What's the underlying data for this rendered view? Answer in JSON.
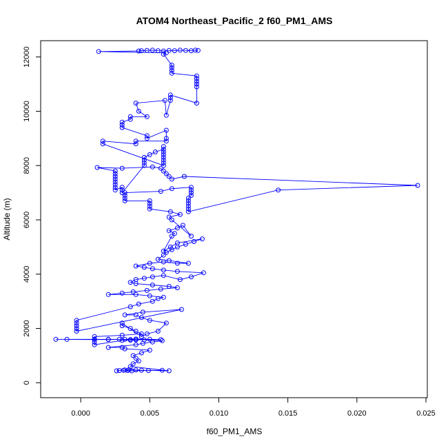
{
  "chart_data": {
    "type": "scatter",
    "title": "ATOM4 Northeast_Pacific_2 f60_PM1_AMS",
    "xlabel": "f60_PM1_AMS",
    "ylabel": "Altitude (m)",
    "xlim": [
      -0.0029,
      0.0251
    ],
    "ylim": [
      -550,
      12600
    ],
    "xticks": [
      0.0,
      0.005,
      0.01,
      0.015,
      0.02,
      0.025
    ],
    "xtick_labels": [
      "0.000",
      "0.005",
      "0.010",
      "0.015",
      "0.020",
      "0.025"
    ],
    "yticks": [
      0,
      2000,
      4000,
      6000,
      8000,
      10000,
      12000
    ],
    "ytick_labels": [
      "0",
      "2000",
      "4000",
      "6000",
      "8000",
      "10000",
      "12000"
    ],
    "grid": false,
    "series_style": {
      "color": "#0000ff",
      "marker": "open-circle",
      "line": true
    },
    "points": [
      [
        0.0059,
        460
      ],
      [
        0.0049,
        450
      ],
      [
        0.0037,
        440
      ],
      [
        0.0034,
        450
      ],
      [
        0.0031,
        460
      ],
      [
        0.0028,
        450
      ],
      [
        0.0026,
        440
      ],
      [
        0.0032,
        470
      ],
      [
        0.0035,
        480
      ],
      [
        0.004,
        470
      ],
      [
        0.0044,
        460
      ],
      [
        0.0064,
        440
      ],
      [
        0.0036,
        600
      ],
      [
        0.0038,
        700
      ],
      [
        0.0042,
        800
      ],
      [
        0.004,
        900
      ],
      [
        0.0038,
        1000
      ],
      [
        0.0044,
        1100
      ],
      [
        0.005,
        1200
      ],
      [
        0.0032,
        1250
      ],
      [
        0.003,
        1300
      ],
      [
        0.002,
        1300
      ],
      [
        0.004,
        1400
      ],
      [
        0.0045,
        1450
      ],
      [
        0.0052,
        1500
      ],
      [
        0.0059,
        1550
      ],
      [
        0.0046,
        1580
      ],
      [
        0.0036,
        1590
      ],
      [
        0.0028,
        1600
      ],
      [
        0.002,
        1600
      ],
      [
        0.001,
        1600
      ],
      [
        -0.001,
        1600
      ],
      [
        -0.0018,
        1600
      ],
      [
        0.001,
        1590
      ],
      [
        0.002,
        1590
      ],
      [
        0.0032,
        1600
      ],
      [
        0.004,
        1610
      ],
      [
        0.005,
        1600
      ],
      [
        0.0058,
        1590
      ],
      [
        0.004,
        1580
      ],
      [
        0.0036,
        1570
      ],
      [
        0.003,
        1560
      ],
      [
        0.001,
        1400
      ],
      [
        0.001,
        1500
      ],
      [
        0.001,
        1600
      ],
      [
        0.001,
        1700
      ],
      [
        0.003,
        1750
      ],
      [
        0.0044,
        1800
      ],
      [
        0.004,
        1900
      ],
      [
        0.0036,
        2000
      ],
      [
        0.003,
        2100
      ],
      [
        0.003,
        2200
      ],
      [
        0.0044,
        1700
      ],
      [
        0.0048,
        1800
      ],
      [
        0.0056,
        1900
      ],
      [
        0.0062,
        2200
      ],
      [
        0.005,
        2300
      ],
      [
        0.0044,
        2400
      ],
      [
        0.004,
        2500
      ],
      [
        0.0032,
        2500
      ],
      [
        0.0045,
        2600
      ],
      [
        0.0073,
        2700
      ],
      [
        -0.0003,
        1900
      ],
      [
        -0.0003,
        2000
      ],
      [
        -0.0003,
        2100
      ],
      [
        -0.0003,
        2200
      ],
      [
        -0.0003,
        2300
      ],
      [
        0.0036,
        2800
      ],
      [
        0.0042,
        2900
      ],
      [
        0.0052,
        3000
      ],
      [
        0.0056,
        3100
      ],
      [
        0.006,
        3150
      ],
      [
        0.005,
        3200
      ],
      [
        0.004,
        3250
      ],
      [
        0.002,
        3250
      ],
      [
        0.003,
        3300
      ],
      [
        0.0038,
        3350
      ],
      [
        0.0048,
        3400
      ],
      [
        0.0058,
        3450
      ],
      [
        0.007,
        3500
      ],
      [
        0.0064,
        3550
      ],
      [
        0.0052,
        3600
      ],
      [
        0.004,
        3650
      ],
      [
        0.0036,
        3700
      ],
      [
        0.004,
        3800
      ],
      [
        0.0046,
        3850
      ],
      [
        0.0052,
        3900
      ],
      [
        0.006,
        3950
      ],
      [
        0.0072,
        3800
      ],
      [
        0.008,
        3900
      ],
      [
        0.0089,
        4050
      ],
      [
        0.007,
        4100
      ],
      [
        0.006,
        4150
      ],
      [
        0.0052,
        4200
      ],
      [
        0.0046,
        4250
      ],
      [
        0.004,
        4300
      ],
      [
        0.005,
        4400
      ],
      [
        0.006,
        4450
      ],
      [
        0.007,
        4400
      ],
      [
        0.0078,
        4400
      ],
      [
        0.0064,
        4500
      ],
      [
        0.0056,
        4550
      ],
      [
        0.006,
        4700
      ],
      [
        0.0062,
        4800
      ],
      [
        0.0066,
        4900
      ],
      [
        0.007,
        5000
      ],
      [
        0.0076,
        5100
      ],
      [
        0.0082,
        5200
      ],
      [
        0.0088,
        5300
      ],
      [
        0.007,
        5150
      ],
      [
        0.0065,
        5000
      ],
      [
        0.006,
        4850
      ],
      [
        0.0066,
        5400
      ],
      [
        0.0068,
        5500
      ],
      [
        0.0064,
        5600
      ],
      [
        0.007,
        5700
      ],
      [
        0.0074,
        5800
      ],
      [
        0.008,
        5400
      ],
      [
        0.0066,
        6000
      ],
      [
        0.0064,
        6100
      ],
      [
        0.0072,
        6200
      ],
      [
        0.0065,
        6300
      ],
      [
        0.005,
        6400
      ],
      [
        0.005,
        6500
      ],
      [
        0.005,
        6600
      ],
      [
        0.005,
        6700
      ],
      [
        0.0032,
        6700
      ],
      [
        0.0032,
        6800
      ],
      [
        0.0032,
        6900
      ],
      [
        0.0032,
        7000
      ],
      [
        0.0058,
        7050
      ],
      [
        0.0066,
        7150
      ],
      [
        0.008,
        7200
      ],
      [
        0.008,
        7100
      ],
      [
        0.008,
        7000
      ],
      [
        0.008,
        6900
      ],
      [
        0.0078,
        6800
      ],
      [
        0.0078,
        6700
      ],
      [
        0.0078,
        6600
      ],
      [
        0.0078,
        6500
      ],
      [
        0.0078,
        6400
      ],
      [
        0.0078,
        6300
      ],
      [
        0.0143,
        7100
      ],
      [
        0.0244,
        7270
      ],
      [
        0.0075,
        7600
      ],
      [
        0.0066,
        7500
      ],
      [
        0.0064,
        7600
      ],
      [
        0.0062,
        7700
      ],
      [
        0.006,
        7800
      ],
      [
        0.0058,
        7900
      ],
      [
        0.0052,
        7950
      ],
      [
        0.003,
        7900
      ],
      [
        0.0012,
        7930
      ],
      [
        0.0025,
        7800
      ],
      [
        0.0025,
        7700
      ],
      [
        0.0025,
        7600
      ],
      [
        0.0025,
        7500
      ],
      [
        0.0025,
        7400
      ],
      [
        0.0025,
        7300
      ],
      [
        0.0025,
        7200
      ],
      [
        0.0025,
        7100
      ],
      [
        0.003,
        7200
      ],
      [
        0.003,
        7100
      ],
      [
        0.003,
        7000
      ],
      [
        0.0046,
        8000
      ],
      [
        0.0046,
        8100
      ],
      [
        0.0046,
        8200
      ],
      [
        0.0046,
        8300
      ],
      [
        0.005,
        8400
      ],
      [
        0.0054,
        8500
      ],
      [
        0.006,
        8600
      ],
      [
        0.006,
        8700
      ],
      [
        0.006,
        8500
      ],
      [
        0.006,
        8400
      ],
      [
        0.006,
        8300
      ],
      [
        0.006,
        8200
      ],
      [
        0.006,
        8100
      ],
      [
        0.006,
        8000
      ],
      [
        0.0016,
        8800
      ],
      [
        0.0016,
        8900
      ],
      [
        0.004,
        8800
      ],
      [
        0.004,
        8900
      ],
      [
        0.0062,
        8900
      ],
      [
        0.0062,
        9000
      ],
      [
        0.0062,
        9300
      ],
      [
        0.0048,
        9000
      ],
      [
        0.0048,
        9100
      ],
      [
        0.003,
        9400
      ],
      [
        0.003,
        9500
      ],
      [
        0.003,
        9600
      ],
      [
        0.0036,
        9700
      ],
      [
        0.0036,
        9800
      ],
      [
        0.0048,
        9800
      ],
      [
        0.0042,
        10000
      ],
      [
        0.004,
        10300
      ],
      [
        0.0061,
        10400
      ],
      [
        0.0062,
        9850
      ],
      [
        0.0065,
        10400
      ],
      [
        0.0065,
        10500
      ],
      [
        0.0065,
        10600
      ],
      [
        0.0084,
        10300
      ],
      [
        0.0084,
        10900
      ],
      [
        0.0084,
        11000
      ],
      [
        0.0084,
        11100
      ],
      [
        0.0084,
        11200
      ],
      [
        0.0084,
        11300
      ],
      [
        0.0066,
        11400
      ],
      [
        0.0066,
        11500
      ],
      [
        0.0066,
        11600
      ],
      [
        0.0066,
        11700
      ],
      [
        0.006,
        12100
      ],
      [
        0.0062,
        12150
      ],
      [
        0.0013,
        12200
      ],
      [
        0.0042,
        12220
      ],
      [
        0.0044,
        12230
      ],
      [
        0.0048,
        12240
      ],
      [
        0.0052,
        12250
      ],
      [
        0.0056,
        12230
      ],
      [
        0.006,
        12220
      ],
      [
        0.0064,
        12240
      ],
      [
        0.0068,
        12230
      ],
      [
        0.0072,
        12250
      ],
      [
        0.0076,
        12240
      ],
      [
        0.008,
        12230
      ],
      [
        0.0083,
        12250
      ],
      [
        0.0085,
        12240
      ]
    ]
  }
}
